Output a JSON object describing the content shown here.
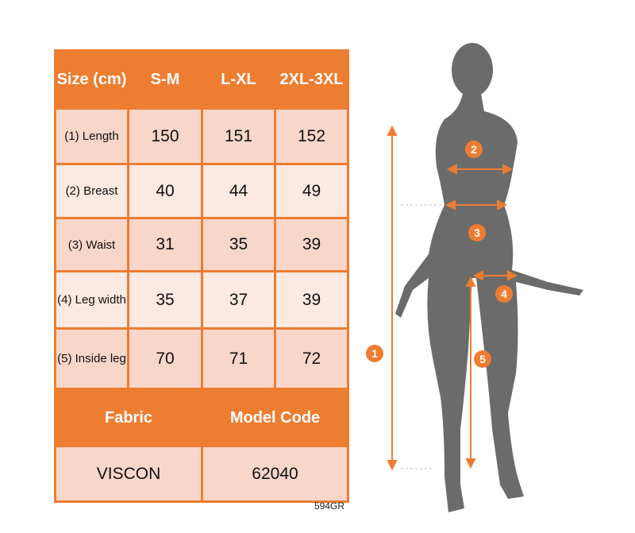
{
  "table": {
    "header": [
      "Size (cm)",
      "S-M",
      "L-XL",
      "2XL-3XL"
    ],
    "rows": [
      {
        "label": "(1) Length",
        "values": [
          "150",
          "151",
          "152"
        ]
      },
      {
        "label": "(2) Breast",
        "values": [
          "40",
          "44",
          "49"
        ]
      },
      {
        "label": "(3) Waist",
        "values": [
          "31",
          "35",
          "39"
        ]
      },
      {
        "label": "(4) Leg width",
        "values": [
          "35",
          "37",
          "39"
        ]
      },
      {
        "label": "(5) Inside leg",
        "values": [
          "70",
          "71",
          "72"
        ]
      }
    ],
    "footer_header": [
      "Fabric",
      "Model Code"
    ],
    "footer_values": [
      "VISCON",
      "62040"
    ]
  },
  "image_code": "594GR",
  "markers": [
    "1",
    "2",
    "3",
    "4",
    "5"
  ],
  "colors": {
    "accent": "#ED7D31",
    "cell_dark": "#F8D6CA",
    "cell_light": "#FBE9E2",
    "silhouette": "#6B6B6B"
  }
}
